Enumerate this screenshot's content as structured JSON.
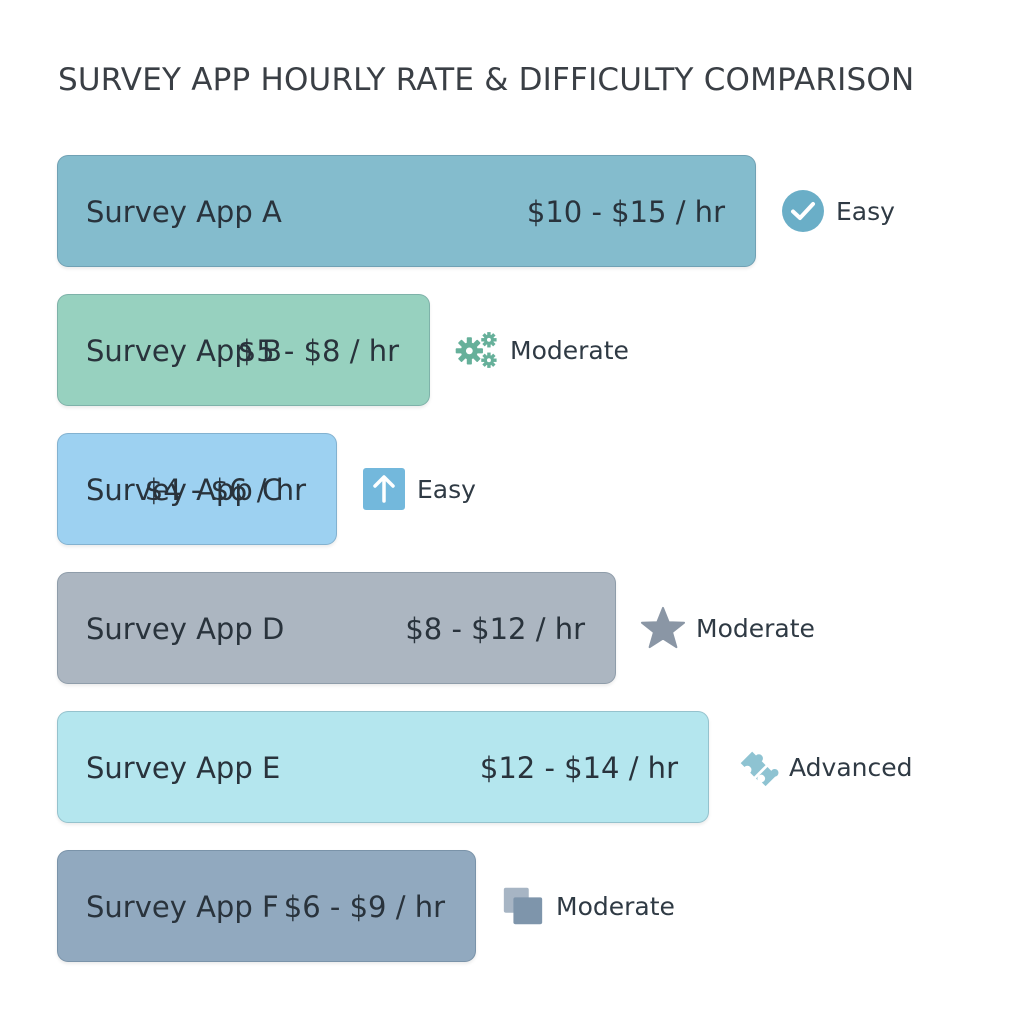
{
  "chart_data": {
    "type": "bar",
    "title": "SURVEY APP HOURLY RATE & DIFFICULTY COMPARISON",
    "orientation": "horizontal",
    "categories": [
      "Survey App A",
      "Survey App B",
      "Survey App C",
      "Survey App D",
      "Survey App E",
      "Survey App F"
    ],
    "series": [
      {
        "values": [
          15,
          8,
          6,
          12,
          14,
          9
        ],
        "ranges": [
          [
            10,
            15
          ],
          [
            5,
            8
          ],
          [
            4,
            6
          ],
          [
            8,
            12
          ],
          [
            12,
            14
          ],
          [
            6,
            9
          ]
        ],
        "labels": [
          "$10 - $15 / hr",
          "$5 - $8 / hr",
          "$4 - $6 / hr",
          "$8 - $12 / hr",
          "$12 - $14 / hr",
          "$6 - $9 / hr"
        ]
      }
    ],
    "difficulty": [
      "Easy",
      "Moderate",
      "Easy",
      "Moderate",
      "Advanced",
      "Moderate"
    ],
    "icons": [
      "check-circle-icon",
      "gears-icon",
      "up-arrow-icon",
      "star-icon",
      "puzzle-icon",
      "copy-icon"
    ],
    "colors": [
      "#84bccd",
      "#97d1bf",
      "#9dd1f1",
      "#acb6c1",
      "#b4e6ee",
      "#91a9bf"
    ],
    "xlim": [
      0,
      15.9
    ],
    "grid": false,
    "legend": "none"
  }
}
